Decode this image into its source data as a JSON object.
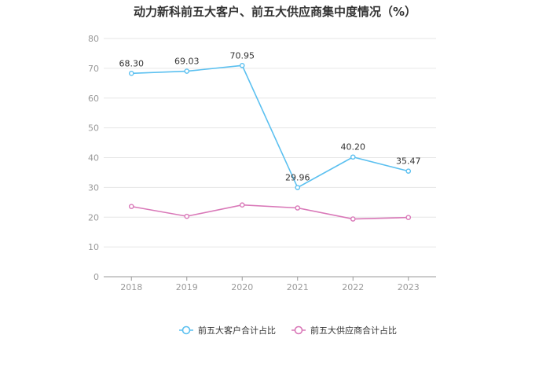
{
  "chart_data": {
    "type": "line",
    "title": "动力新科前五大客户、前五大供应商集中度情况（%）",
    "xlabel": "",
    "ylabel": "",
    "categories": [
      "2018",
      "2019",
      "2020",
      "2021",
      "2022",
      "2023"
    ],
    "ylim": [
      0,
      80
    ],
    "yticks": [
      0,
      10,
      20,
      30,
      40,
      50,
      60,
      70,
      80
    ],
    "grid": true,
    "legend_position": "bottom",
    "series": [
      {
        "name": "前五大客户合计占比",
        "color": "#5bc0f0",
        "values": [
          68.3,
          69.03,
          70.95,
          29.96,
          40.2,
          35.47
        ],
        "data_labels": [
          "68.30",
          "69.03",
          "70.95",
          "29.96",
          "40.20",
          "35.47"
        ]
      },
      {
        "name": "前五大供应商合计占比",
        "color": "#d978b8",
        "values": [
          23.6,
          20.3,
          24.1,
          23.1,
          19.4,
          19.9
        ],
        "data_labels": []
      }
    ]
  }
}
